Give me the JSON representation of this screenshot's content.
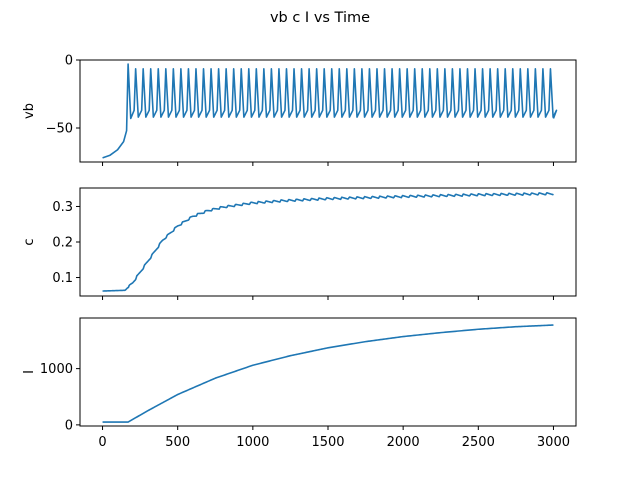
{
  "figure": {
    "title": "vb c I vs Time"
  },
  "colors": {
    "series": "#1f77b4",
    "axes": "#000000",
    "background": "#ffffff"
  },
  "chart_data": [
    {
      "type": "line",
      "ylabel": "vb",
      "xlabel": "",
      "xlim": [
        -150,
        3150
      ],
      "ylim": [
        -75,
        0
      ],
      "xticks": [
        0,
        500,
        1000,
        1500,
        2000,
        2500,
        3000
      ],
      "xtick_labels_visible": false,
      "yticks": [
        0,
        -50
      ],
      "ytick_labels": [
        "0",
        "−50"
      ],
      "grid": false,
      "description_of_signal": {
        "initial_value": -72,
        "rise_until_time": 170,
        "first_spike_time": 170,
        "spike_count": 57,
        "spike_peak": -3,
        "trough_min": -43,
        "end_time": 3000,
        "end_value": -43
      },
      "series": [
        {
          "x": [
            0,
            50,
            100,
            140,
            160,
            170
          ],
          "y": [
            -72,
            -70,
            -66,
            -60,
            -52,
            -3
          ]
        }
      ]
    },
    {
      "type": "line",
      "ylabel": "c",
      "xlabel": "",
      "xlim": [
        -150,
        3150
      ],
      "ylim": [
        0.048,
        0.352
      ],
      "xticks": [
        0,
        500,
        1000,
        1500,
        2000,
        2500,
        3000
      ],
      "xtick_labels_visible": false,
      "yticks": [
        0.1,
        0.2,
        0.3
      ],
      "ytick_labels": [
        "0.1",
        "0.2",
        "0.3"
      ],
      "grid": false,
      "series": [
        {
          "x": [
            0,
            150,
            200,
            300,
            400,
            500,
            600,
            700,
            800,
            1000,
            1200,
            1500,
            2000,
            2500,
            3000
          ],
          "y": [
            0.062,
            0.064,
            0.085,
            0.145,
            0.205,
            0.245,
            0.272,
            0.288,
            0.298,
            0.31,
            0.316,
            0.322,
            0.328,
            0.333,
            0.336
          ]
        }
      ],
      "oscillation_amplitude": 0.006
    },
    {
      "type": "line",
      "ylabel": "I",
      "xlabel": "",
      "xlim": [
        -150,
        3150
      ],
      "ylim": [
        -20,
        1900
      ],
      "xticks": [
        0,
        500,
        1000,
        1500,
        2000,
        2500,
        3000
      ],
      "xtick_labels": [
        "0",
        "500",
        "1000",
        "1500",
        "2000",
        "2500",
        "3000"
      ],
      "yticks": [
        0,
        1000
      ],
      "ytick_labels": [
        "0",
        "1000"
      ],
      "grid": false,
      "series": [
        {
          "x": [
            0,
            170,
            300,
            500,
            750,
            1000,
            1250,
            1500,
            1750,
            2000,
            2250,
            2500,
            2750,
            3000
          ],
          "y": [
            50,
            50,
            250,
            540,
            830,
            1060,
            1230,
            1370,
            1480,
            1570,
            1640,
            1700,
            1745,
            1775
          ]
        }
      ]
    }
  ]
}
